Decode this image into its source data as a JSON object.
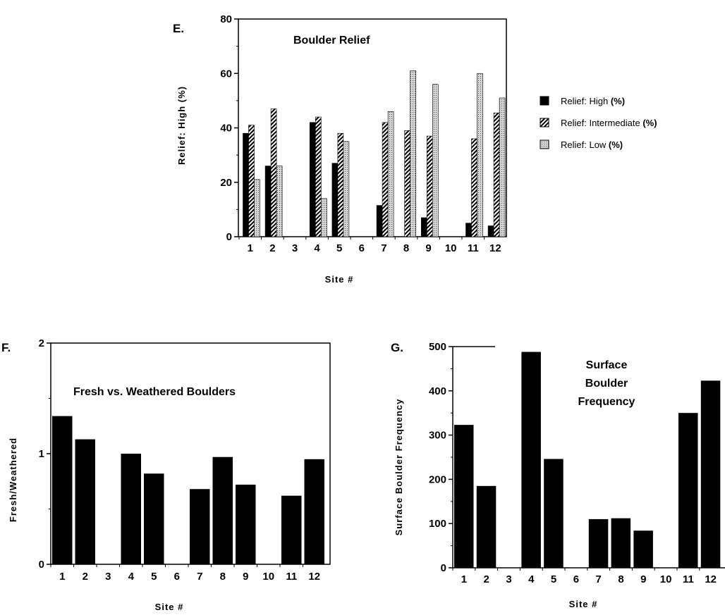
{
  "chart_data": [
    {
      "panel": "E.",
      "type": "bar",
      "title": "Boulder Relief",
      "xlabel": "Site #",
      "ylabel": "Relief:  High  (%)",
      "ylim": [
        0,
        80
      ],
      "yticks": [
        "0",
        "20",
        "40",
        "60",
        "80"
      ],
      "categories": [
        "1",
        "2",
        "3",
        "4",
        "5",
        "6",
        "7",
        "8",
        "9",
        "10",
        "11",
        "12"
      ],
      "legend_position": "right",
      "series": [
        {
          "name": "Relief: High",
          "name_suffix": "(%)",
          "pattern": "solid",
          "values": [
            38,
            26,
            0,
            42,
            27,
            0,
            11.5,
            0,
            7,
            0,
            5,
            4
          ]
        },
        {
          "name": "Relief: Intermediate",
          "name_suffix": "(%)",
          "pattern": "hatch",
          "values": [
            41,
            47,
            0,
            44,
            38,
            0,
            42,
            39,
            37,
            0,
            36,
            45.5
          ]
        },
        {
          "name": "Relief: Low",
          "name_suffix": "(%)",
          "pattern": "dots",
          "values": [
            21,
            26,
            0,
            14,
            35,
            0,
            46,
            61,
            56,
            0,
            60,
            51
          ]
        }
      ]
    },
    {
      "panel": "F.",
      "type": "bar",
      "title": "Fresh vs. Weathered Boulders",
      "xlabel": "Site #",
      "ylabel": "Fresh/Weathered",
      "ylim": [
        0,
        2
      ],
      "yticks": [
        "0",
        "1",
        "2"
      ],
      "categories": [
        "1",
        "2",
        "3",
        "4",
        "5",
        "6",
        "7",
        "8",
        "9",
        "10",
        "11",
        "12"
      ],
      "values": [
        1.34,
        1.13,
        0,
        1.0,
        0.82,
        0,
        0.68,
        0.97,
        0.72,
        0,
        0.62,
        0.95
      ]
    },
    {
      "panel": "G.",
      "type": "bar",
      "title": [
        "Surface",
        "Boulder",
        "Frequency"
      ],
      "xlabel": "Site #",
      "ylabel": "Surface  Boulder  Frequency",
      "ylim": [
        0,
        500
      ],
      "yticks": [
        "0",
        "100",
        "200",
        "300",
        "400",
        "500"
      ],
      "categories": [
        "1",
        "2",
        "3",
        "4",
        "5",
        "6",
        "7",
        "8",
        "9",
        "10",
        "11",
        "12"
      ],
      "values": [
        323,
        185,
        0,
        488,
        246,
        0,
        110,
        112,
        84,
        0,
        350,
        423
      ]
    }
  ]
}
